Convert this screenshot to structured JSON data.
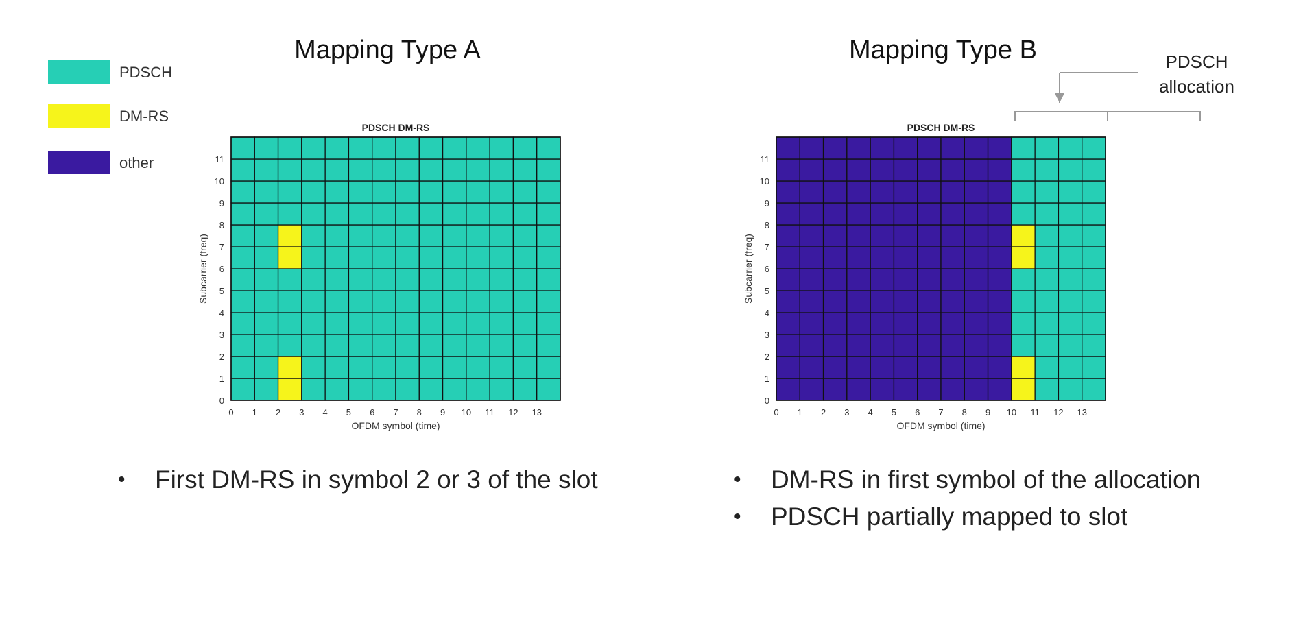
{
  "legend": [
    {
      "label": "PDSCH",
      "color": "#26cfb5"
    },
    {
      "label": "DM-RS",
      "color": "#f6f41b"
    },
    {
      "label": "other",
      "color": "#3a1aa0"
    }
  ],
  "panels": [
    {
      "heading": "Mapping Type A",
      "bullets": [
        "First DM-RS in symbol 2 or 3 of the slot"
      ]
    },
    {
      "heading": "Mapping Type B",
      "bullets": [
        "DM-RS in first symbol of the allocation",
        "PDSCH partially mapped to slot"
      ]
    }
  ],
  "callout": {
    "line1": "PDSCH",
    "line2": "allocation"
  },
  "chart_data": [
    {
      "type": "heatmap",
      "title": "PDSCH DM-RS",
      "xlabel": "OFDM symbol (time)",
      "ylabel": "Subcarrier (freq)",
      "x_ticks": [
        0,
        1,
        2,
        3,
        4,
        5,
        6,
        7,
        8,
        9,
        10,
        11,
        12,
        13
      ],
      "y_ticks": [
        0,
        1,
        2,
        3,
        4,
        5,
        6,
        7,
        8,
        9,
        10,
        11
      ],
      "xlim": [
        0,
        14
      ],
      "ylim": [
        0,
        12
      ],
      "pdsch_symbols": [
        0,
        14
      ],
      "dmrs_cells": [
        [
          2,
          0
        ],
        [
          2,
          1
        ],
        [
          2,
          6
        ],
        [
          2,
          7
        ]
      ],
      "colors": {
        "pdsch": "#26cfb5",
        "dmrs": "#f6f41b",
        "other": "#3a1aa0"
      }
    },
    {
      "type": "heatmap",
      "title": "PDSCH DM-RS",
      "xlabel": "OFDM symbol (time)",
      "ylabel": "Subcarrier (freq)",
      "x_ticks": [
        0,
        1,
        2,
        3,
        4,
        5,
        6,
        7,
        8,
        9,
        10,
        11,
        12,
        13
      ],
      "y_ticks": [
        0,
        1,
        2,
        3,
        4,
        5,
        6,
        7,
        8,
        9,
        10,
        11
      ],
      "xlim": [
        0,
        14
      ],
      "ylim": [
        0,
        12
      ],
      "pdsch_symbols": [
        10,
        14
      ],
      "dmrs_cells": [
        [
          10,
          0
        ],
        [
          10,
          1
        ],
        [
          10,
          6
        ],
        [
          10,
          7
        ]
      ],
      "colors": {
        "pdsch": "#26cfb5",
        "dmrs": "#f6f41b",
        "other": "#3a1aa0"
      }
    }
  ]
}
